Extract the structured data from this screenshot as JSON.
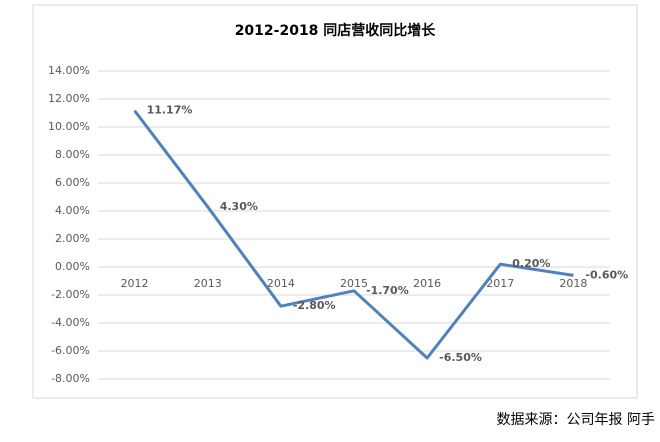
{
  "chart_data": {
    "type": "line",
    "title": "2012-2018 同店营收同比增长",
    "categories": [
      "2012",
      "2013",
      "2014",
      "2015",
      "2016",
      "2017",
      "2018"
    ],
    "series": [
      {
        "name": "同店营收同比增长",
        "color": "#4f81bd",
        "values": [
          11.17,
          4.3,
          -2.8,
          -1.7,
          -6.5,
          0.2,
          -0.6
        ],
        "value_labels": [
          "11.17%",
          "4.30%",
          "-2.80%",
          "-1.70%",
          "-6.50%",
          "0.20%",
          "-0.60%"
        ]
      }
    ],
    "ylim": [
      -8,
      14
    ],
    "yticks": [
      {
        "value": -8,
        "label": "-8.00%"
      },
      {
        "value": -6,
        "label": "-6.00%"
      },
      {
        "value": -4,
        "label": "-4.00%"
      },
      {
        "value": -2,
        "label": "-2.00%"
      },
      {
        "value": 0,
        "label": "0.00%"
      },
      {
        "value": 2,
        "label": "2.00%"
      },
      {
        "value": 4,
        "label": "4.00%"
      },
      {
        "value": 6,
        "label": "6.00%"
      },
      {
        "value": 8,
        "label": "8.00%"
      },
      {
        "value": 10,
        "label": "10.00%"
      },
      {
        "value": 12,
        "label": "12.00%"
      },
      {
        "value": 14,
        "label": "14.00%"
      }
    ],
    "grid": true,
    "source": "数据来源：公司年报 阿手"
  }
}
